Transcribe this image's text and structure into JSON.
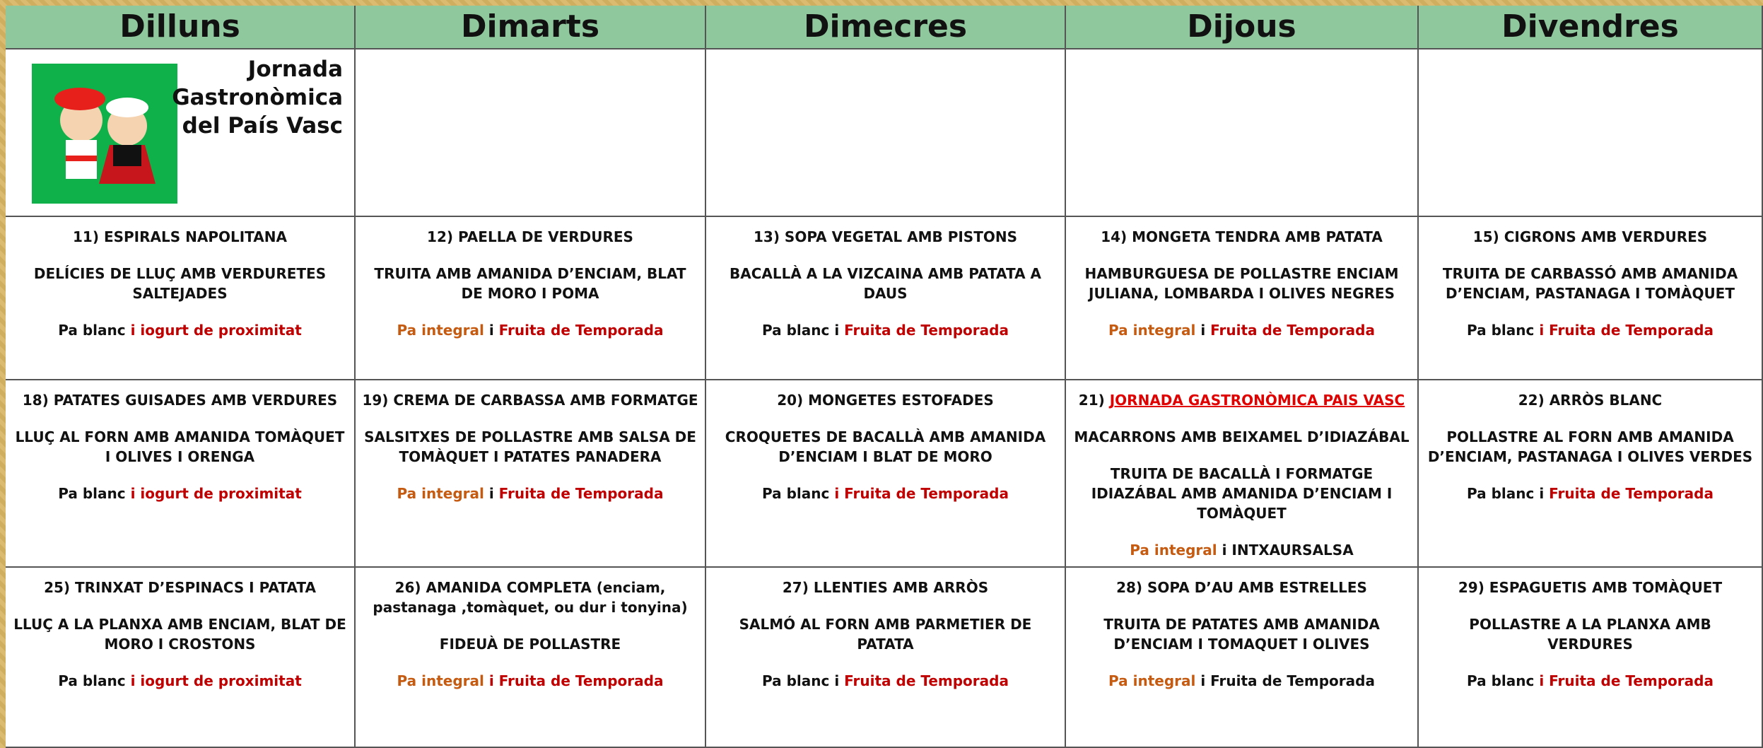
{
  "header": {
    "days": [
      "Dilluns",
      "Dimarts",
      "Dimecres",
      "Dijous",
      "Divendres"
    ]
  },
  "banner": {
    "lines": [
      "Jornada",
      "Gastronòmica",
      "del País Vasc"
    ]
  },
  "weeks": [
    [
      {
        "lines": [
          "11) ESPIRALS NAPOLITANA",
          "DELÍCIES DE LLUÇ AMB VERDURETES SALTEJADES",
          [
            {
              "text": "Pa blanc ",
              "color": "#111111"
            },
            {
              "text": "i iogurt de proximitat",
              "color": "#c00000"
            }
          ]
        ]
      },
      {
        "lines": [
          "12) PAELLA DE VERDURES",
          "TRUITA AMB AMANIDA D’ENCIAM, BLAT DE MORO I POMA",
          [
            {
              "text": "Pa integral",
              "color": "#c55a11"
            },
            {
              "text": " i ",
              "color": "#111111"
            },
            {
              "text": "Fruita de Temporada",
              "color": "#c00000"
            }
          ]
        ]
      },
      {
        "lines": [
          "13) SOPA VEGETAL AMB PISTONS",
          "BACALLÀ A LA VIZCAINA AMB PATATA A DAUS",
          [
            {
              "text": "Pa blanc i ",
              "color": "#111111"
            },
            {
              "text": "Fruita de Temporada",
              "color": "#c00000"
            }
          ]
        ]
      },
      {
        "lines": [
          "14)  MONGETA TENDRA AMB PATATA",
          "HAMBURGUESA DE POLLASTRE ENCIAM JULIANA, LOMBARDA I OLIVES NEGRES",
          [
            {
              "text": "Pa integral",
              "color": "#c55a11"
            },
            {
              "text": " i ",
              "color": "#111111"
            },
            {
              "text": "Fruita de Temporada",
              "color": "#c00000"
            }
          ]
        ]
      },
      {
        "lines": [
          "15) CIGRONS AMB VERDURES",
          "TRUITA DE CARBASSÓ AMB AMANIDA D’ENCIAM, PASTANAGA I TOMÀQUET",
          [
            {
              "text": "Pa blanc ",
              "color": "#111111"
            },
            {
              "text": "i Fruita de Temporada",
              "color": "#c00000"
            }
          ]
        ]
      }
    ],
    [
      {
        "lines": [
          "18) PATATES GUISADES AMB VERDURES",
          "LLUÇ AL FORN AMB AMANIDA TOMÀQUET I OLIVES I ORENGA",
          [
            {
              "text": "Pa blanc ",
              "color": "#111111"
            },
            {
              "text": "i iogurt de proximitat",
              "color": "#c00000"
            }
          ]
        ]
      },
      {
        "lines": [
          "19) CREMA DE CARBASSA AMB FORMATGE",
          "SALSITXES DE POLLASTRE AMB SALSA DE TOMÀQUET I PATATES PANADERA",
          [
            {
              "text": "Pa integral",
              "color": "#c55a11"
            },
            {
              "text": " i ",
              "color": "#111111"
            },
            {
              "text": "Fruita de Temporada",
              "color": "#c00000"
            }
          ]
        ]
      },
      {
        "lines": [
          "20) MONGETES ESTOFADES",
          "CROQUETES DE BACALLÀ AMB AMANIDA D’ENCIAM I BLAT DE MORO",
          [
            {
              "text": "Pa blanc ",
              "color": "#111111"
            },
            {
              "text": "i Fruita de Temporada",
              "color": "#c00000"
            }
          ]
        ]
      },
      {
        "lines": [
          [
            {
              "text": "21) ",
              "color": "#111111"
            },
            {
              "text": "JORNADA GASTRONÒMICA PAIS VASC",
              "color": "#e00000",
              "underline": true
            }
          ],
          "MACARRONS AMB BEIXAMEL D’IDIAZÁBAL",
          "TRUITA DE BACALLÀ I FORMATGE IDIAZÁBAL AMB AMANIDA D’ENCIAM I TOMÀQUET",
          [
            {
              "text": "Pa integral",
              "color": "#c55a11"
            },
            {
              "text": " i INTXAURSALSA",
              "color": "#111111"
            }
          ]
        ]
      },
      {
        "lines": [
          "22) ARRÒS BLANC",
          "POLLASTRE AL FORN AMB AMANIDA D’ENCIAM, PASTANAGA I OLIVES VERDES",
          [
            {
              "text": "Pa blanc i ",
              "color": "#111111"
            },
            {
              "text": "Fruita de Temporada",
              "color": "#c00000"
            }
          ]
        ]
      }
    ],
    [
      {
        "lines": [
          "25) TRINXAT D’ESPINACS I PATATA",
          "LLUÇ A LA PLANXA AMB ENCIAM, BLAT DE MORO I CROSTONS",
          [
            {
              "text": "Pa blanc ",
              "color": "#111111"
            },
            {
              "text": "i iogurt de proximitat",
              "color": "#c00000"
            }
          ]
        ]
      },
      {
        "lines": [
          "26) AMANIDA COMPLETA (enciam, pastanaga ,tomàquet, ou dur i tonyina)",
          "FIDEUÀ DE POLLASTRE",
          [
            {
              "text": "Pa integral",
              "color": "#c55a11"
            },
            {
              "text": " i Fruita de Temporada",
              "color": "#c00000"
            }
          ]
        ]
      },
      {
        "lines": [
          "27) LLENTIES AMB ARRÒS",
          "SALMÓ AL FORN AMB PARMETIER DE PATATA",
          [
            {
              "text": "Pa blanc i ",
              "color": "#111111"
            },
            {
              "text": "Fruita de Temporada",
              "color": "#c00000"
            }
          ]
        ]
      },
      {
        "lines": [
          "28) SOPA D’AU AMB ESTRELLES",
          "TRUITA DE PATATES AMB AMANIDA D’ENCIAM I TOMAQUET I OLIVES",
          [
            {
              "text": "Pa integral",
              "color": "#c55a11"
            },
            {
              "text": " i Fruita de Temporada",
              "color": "#111111"
            }
          ]
        ]
      },
      {
        "lines": [
          "29) ESPAGUETIS AMB TOMÀQUET",
          "POLLASTRE A LA PLANXA AMB VERDURES",
          [
            {
              "text": "Pa blanc ",
              "color": "#111111"
            },
            {
              "text": "i Fruita de Temporada",
              "color": "#c00000"
            }
          ]
        ]
      }
    ]
  ]
}
